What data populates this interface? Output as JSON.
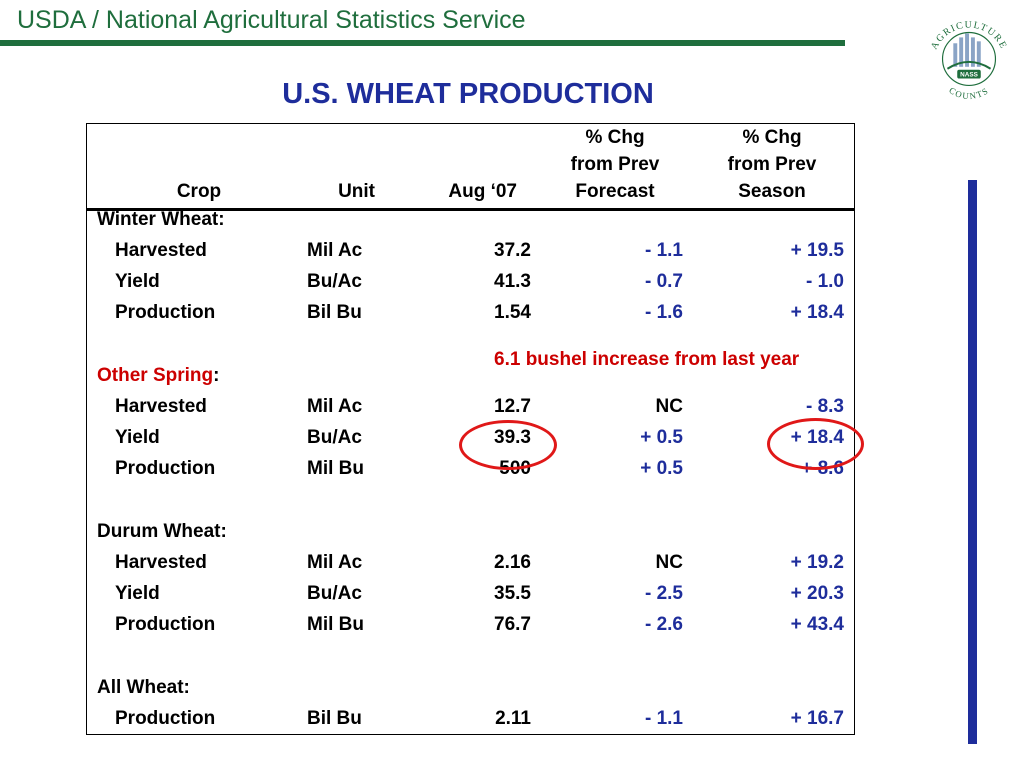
{
  "header": {
    "org": "USDA / National Agricultural Statistics Service"
  },
  "logo": {
    "arc_text": "AGRICULTURE",
    "badge": "NASS",
    "bottom_text": "COUNTS"
  },
  "title": "U.S. WHEAT PRODUCTION",
  "table": {
    "headers": {
      "crop": "Crop",
      "unit": "Unit",
      "aug": "Aug ‘07",
      "chg_forecast": [
        "% Chg",
        "from Prev",
        "Forecast"
      ],
      "chg_season": [
        "% Chg",
        "from Prev",
        "Season"
      ]
    },
    "sections": [
      {
        "label": "Winter Wheat:",
        "rows": [
          {
            "crop": "Harvested",
            "unit": "Mil Ac",
            "aug": "37.2",
            "chg_forecast": "- 1.1",
            "chg_season": "+ 19.5"
          },
          {
            "crop": "Yield",
            "unit": "Bu/Ac",
            "aug": "41.3",
            "chg_forecast": "- 0.7",
            "chg_season": "- 1.0"
          },
          {
            "crop": "Production",
            "unit": "Bil Bu",
            "aug": "1.54",
            "chg_forecast": "- 1.6",
            "chg_season": "+ 18.4"
          }
        ]
      },
      {
        "label": "Other Spring",
        "label_suffix": ":",
        "rows": [
          {
            "crop": "Harvested",
            "unit": "Mil Ac",
            "aug": "12.7",
            "chg_forecast": "NC",
            "chg_season": "- 8.3"
          },
          {
            "crop": "Yield",
            "unit": "Bu/Ac",
            "aug": "39.3",
            "chg_forecast": "+ 0.5",
            "chg_season": "+ 18.4"
          },
          {
            "crop": "Production",
            "unit": "Mil Bu",
            "aug": "500",
            "chg_forecast": "+ 0.5",
            "chg_season": "+ 8.6"
          }
        ]
      },
      {
        "label": "Durum Wheat:",
        "rows": [
          {
            "crop": "Harvested",
            "unit": "Mil Ac",
            "aug": "2.16",
            "chg_forecast": "NC",
            "chg_season": "+ 19.2"
          },
          {
            "crop": "Yield",
            "unit": "Bu/Ac",
            "aug": "35.5",
            "chg_forecast": "- 2.5",
            "chg_season": "+ 20.3"
          },
          {
            "crop": "Production",
            "unit": "Mil Bu",
            "aug": "76.7",
            "chg_forecast": "- 2.6",
            "chg_season": "+ 43.4"
          }
        ]
      },
      {
        "label": "All Wheat:",
        "rows": [
          {
            "crop": "Production",
            "unit": "Bil Bu",
            "aug": "2.11",
            "chg_forecast": "- 1.1",
            "chg_season": "+ 16.7"
          }
        ]
      }
    ]
  },
  "annotation": "6.1 bushel increase from last year",
  "colors": {
    "green": "#1f6e3d",
    "navy": "#1e2d9b",
    "red": "#cc0000",
    "circle": "#e01818"
  }
}
